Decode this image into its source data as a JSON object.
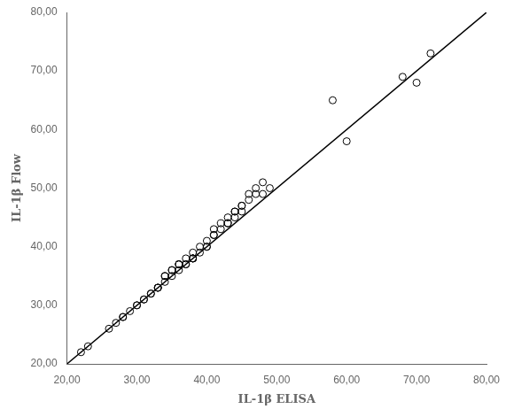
{
  "chart_data": {
    "type": "scatter",
    "xlabel": "IL-1β ELISA",
    "ylabel": "IL-1β Flow",
    "xlim": [
      20,
      80
    ],
    "ylim": [
      20,
      80
    ],
    "xticks": [
      {
        "value": 20,
        "label": "20,00"
      },
      {
        "value": 30,
        "label": "30,00"
      },
      {
        "value": 40,
        "label": "40,00"
      },
      {
        "value": 50,
        "label": "50,00"
      },
      {
        "value": 60,
        "label": "60,00"
      },
      {
        "value": 70,
        "label": "70,00"
      },
      {
        "value": 80,
        "label": "80,00"
      }
    ],
    "yticks": [
      {
        "value": 20,
        "label": "20,00"
      },
      {
        "value": 30,
        "label": "30,00"
      },
      {
        "value": 40,
        "label": "40,00"
      },
      {
        "value": 50,
        "label": "50,00"
      },
      {
        "value": 60,
        "label": "60,00"
      },
      {
        "value": 70,
        "label": "70,00"
      },
      {
        "value": 80,
        "label": "80,00"
      }
    ],
    "grid": false,
    "series": [
      {
        "type": "scatter",
        "color": "#000000",
        "marker": "circle",
        "x": [
          22,
          23,
          26,
          27,
          28,
          28,
          29,
          30,
          30,
          31,
          31,
          32,
          32,
          33,
          33,
          33,
          34,
          34,
          34,
          35,
          35,
          35,
          36,
          36,
          36,
          36,
          37,
          37,
          37,
          38,
          38,
          38,
          38,
          38,
          39,
          39,
          40,
          40,
          40,
          41,
          41,
          41,
          42,
          42,
          43,
          43,
          43,
          44,
          44,
          44,
          45,
          45,
          45,
          46,
          46,
          47,
          47,
          48,
          48,
          49,
          58,
          60,
          68,
          70,
          72
        ],
        "values": [
          22,
          23,
          26,
          27,
          28,
          28,
          29,
          30,
          30,
          31,
          31,
          32,
          32,
          33,
          33,
          33,
          34,
          35,
          35,
          35,
          36,
          36,
          36,
          37,
          37,
          37,
          37,
          37,
          38,
          38,
          38,
          38,
          38,
          39,
          39,
          40,
          40,
          40,
          41,
          42,
          42,
          43,
          43,
          44,
          44,
          44,
          45,
          45,
          46,
          46,
          46,
          47,
          47,
          48,
          49,
          49,
          50,
          49,
          51,
          50,
          65,
          58,
          69,
          68,
          73
        ]
      },
      {
        "type": "line",
        "color": "#000000",
        "line_style": "solid",
        "x": [
          20,
          80
        ],
        "values": [
          20,
          80
        ]
      }
    ]
  }
}
